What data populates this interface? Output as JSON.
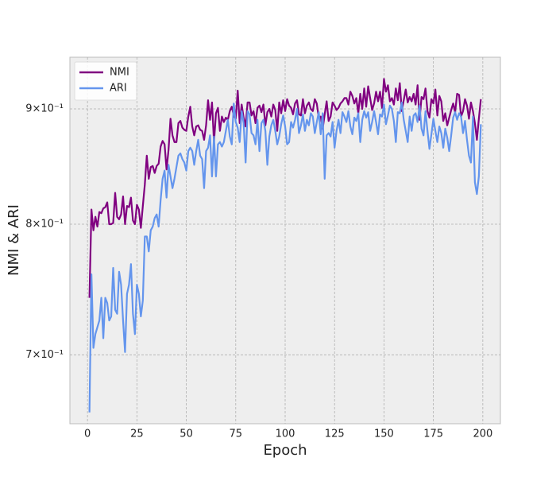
{
  "chart_data": {
    "type": "line",
    "xlabel": "Epoch",
    "ylabel": "NMI & ARI",
    "x": [
      1,
      2,
      3,
      4,
      5,
      6,
      7,
      8,
      9,
      10,
      11,
      12,
      13,
      14,
      15,
      16,
      17,
      18,
      19,
      20,
      21,
      22,
      23,
      24,
      25,
      26,
      27,
      28,
      29,
      30,
      31,
      32,
      33,
      34,
      35,
      36,
      37,
      38,
      39,
      40,
      41,
      42,
      43,
      44,
      45,
      46,
      47,
      48,
      49,
      50,
      51,
      52,
      53,
      54,
      55,
      56,
      57,
      58,
      59,
      60,
      61,
      62,
      63,
      64,
      65,
      66,
      67,
      68,
      69,
      70,
      71,
      72,
      73,
      74,
      75,
      76,
      77,
      78,
      79,
      80,
      81,
      82,
      83,
      84,
      85,
      86,
      87,
      88,
      89,
      90,
      91,
      92,
      93,
      94,
      95,
      96,
      97,
      98,
      99,
      100,
      101,
      102,
      103,
      104,
      105,
      106,
      107,
      108,
      109,
      110,
      111,
      112,
      113,
      114,
      115,
      116,
      117,
      118,
      119,
      120,
      121,
      122,
      123,
      124,
      125,
      126,
      127,
      128,
      129,
      130,
      131,
      132,
      133,
      134,
      135,
      136,
      137,
      138,
      139,
      140,
      141,
      142,
      143,
      144,
      145,
      146,
      147,
      148,
      149,
      150,
      151,
      152,
      153,
      154,
      155,
      156,
      157,
      158,
      159,
      160,
      161,
      162,
      163,
      164,
      165,
      166,
      167,
      168,
      169,
      170,
      171,
      172,
      173,
      174,
      175,
      176,
      177,
      178,
      179,
      180,
      181,
      182,
      183,
      184,
      185,
      186,
      187,
      188,
      189,
      190,
      191,
      192,
      193,
      194,
      195,
      196,
      197,
      198,
      199
    ],
    "series": [
      {
        "name": "NMI",
        "color": "#800080",
        "values": [
          0.742,
          0.812,
          0.795,
          0.806,
          0.798,
          0.81,
          0.809,
          0.813,
          0.814,
          0.818,
          0.8,
          0.8,
          0.801,
          0.826,
          0.806,
          0.804,
          0.808,
          0.823,
          0.8,
          0.815,
          0.814,
          0.822,
          0.803,
          0.8,
          0.816,
          0.812,
          0.797,
          0.815,
          0.833,
          0.858,
          0.838,
          0.848,
          0.849,
          0.843,
          0.849,
          0.851,
          0.866,
          0.871,
          0.868,
          0.846,
          0.863,
          0.891,
          0.876,
          0.87,
          0.87,
          0.887,
          0.889,
          0.883,
          0.881,
          0.88,
          0.893,
          0.902,
          0.884,
          0.876,
          0.884,
          0.885,
          0.881,
          0.88,
          0.872,
          0.885,
          0.908,
          0.89,
          0.906,
          0.87,
          0.896,
          0.901,
          0.88,
          0.893,
          0.888,
          0.892,
          0.89,
          0.898,
          0.902,
          0.894,
          0.891,
          0.917,
          0.887,
          0.904,
          0.892,
          0.884,
          0.906,
          0.906,
          0.894,
          0.898,
          0.887,
          0.901,
          0.903,
          0.897,
          0.904,
          0.885,
          0.897,
          0.9,
          0.893,
          0.904,
          0.899,
          0.88,
          0.906,
          0.896,
          0.908,
          0.898,
          0.909,
          0.903,
          0.901,
          0.895,
          0.905,
          0.908,
          0.895,
          0.894,
          0.909,
          0.896,
          0.903,
          0.906,
          0.9,
          0.898,
          0.909,
          0.905,
          0.892,
          0.893,
          0.882,
          0.895,
          0.907,
          0.889,
          0.893,
          0.906,
          0.903,
          0.899,
          0.901,
          0.905,
          0.907,
          0.91,
          0.91,
          0.904,
          0.916,
          0.912,
          0.905,
          0.91,
          0.896,
          0.914,
          0.9,
          0.919,
          0.902,
          0.921,
          0.91,
          0.899,
          0.905,
          0.916,
          0.907,
          0.916,
          0.901,
          0.928,
          0.916,
          0.922,
          0.907,
          0.91,
          0.904,
          0.919,
          0.908,
          0.924,
          0.898,
          0.908,
          0.918,
          0.906,
          0.911,
          0.907,
          0.914,
          0.904,
          0.922,
          0.89,
          0.911,
          0.909,
          0.919,
          0.898,
          0.892,
          0.909,
          0.905,
          0.918,
          0.894,
          0.912,
          0.907,
          0.889,
          0.896,
          0.885,
          0.892,
          0.899,
          0.905,
          0.897,
          0.914,
          0.913,
          0.893,
          0.898,
          0.909,
          0.903,
          0.891,
          0.906,
          0.898,
          0.887,
          0.872,
          0.891,
          0.909
        ]
      },
      {
        "name": "ARI",
        "color": "#6495ed",
        "values": [
          0.66,
          0.76,
          0.705,
          0.715,
          0.72,
          0.725,
          0.742,
          0.712,
          0.742,
          0.738,
          0.725,
          0.728,
          0.765,
          0.733,
          0.73,
          0.762,
          0.752,
          0.725,
          0.702,
          0.745,
          0.752,
          0.768,
          0.73,
          0.715,
          0.752,
          0.745,
          0.728,
          0.74,
          0.79,
          0.79,
          0.778,
          0.795,
          0.798,
          0.805,
          0.808,
          0.798,
          0.82,
          0.838,
          0.845,
          0.822,
          0.85,
          0.84,
          0.83,
          0.838,
          0.848,
          0.858,
          0.86,
          0.855,
          0.852,
          0.845,
          0.862,
          0.865,
          0.862,
          0.85,
          0.862,
          0.872,
          0.858,
          0.855,
          0.83,
          0.862,
          0.865,
          0.876,
          0.84,
          0.875,
          0.84,
          0.868,
          0.87,
          0.866,
          0.87,
          0.88,
          0.89,
          0.875,
          0.868,
          0.905,
          0.888,
          0.883,
          0.87,
          0.898,
          0.887,
          0.852,
          0.898,
          0.895,
          0.878,
          0.876,
          0.868,
          0.89,
          0.862,
          0.887,
          0.89,
          0.88,
          0.85,
          0.875,
          0.885,
          0.89,
          0.88,
          0.868,
          0.875,
          0.886,
          0.894,
          0.884,
          0.868,
          0.87,
          0.888,
          0.883,
          0.89,
          0.9,
          0.878,
          0.885,
          0.895,
          0.88,
          0.89,
          0.885,
          0.896,
          0.893,
          0.878,
          0.888,
          0.897,
          0.877,
          0.896,
          0.838,
          0.876,
          0.878,
          0.875,
          0.888,
          0.865,
          0.88,
          0.89,
          0.878,
          0.897,
          0.893,
          0.888,
          0.898,
          0.884,
          0.877,
          0.892,
          0.889,
          0.896,
          0.87,
          0.89,
          0.898,
          0.892,
          0.897,
          0.88,
          0.888,
          0.898,
          0.888,
          0.877,
          0.895,
          0.893,
          0.904,
          0.886,
          0.894,
          0.903,
          0.9,
          0.889,
          0.87,
          0.897,
          0.896,
          0.906,
          0.89,
          0.88,
          0.87,
          0.893,
          0.88,
          0.894,
          0.896,
          0.888,
          0.903,
          0.882,
          0.876,
          0.898,
          0.88,
          0.864,
          0.877,
          0.891,
          0.88,
          0.87,
          0.884,
          0.878,
          0.865,
          0.882,
          0.874,
          0.862,
          0.876,
          0.892,
          0.897,
          0.89,
          0.896,
          0.893,
          0.878,
          0.889,
          0.872,
          0.858,
          0.852,
          0.893,
          0.835,
          0.825,
          0.84,
          0.886
        ]
      }
    ],
    "xlim": [
      -8.9,
      208.9
    ],
    "xticks": [
      0,
      25,
      50,
      75,
      100,
      125,
      150,
      175,
      200
    ],
    "ylim": [
      0.6524,
      0.9488
    ],
    "ylog": true,
    "yticks": [
      {
        "value": 0.7,
        "label": "7×10⁻¹"
      },
      {
        "value": 0.8,
        "label": "8×10⁻¹"
      },
      {
        "value": 0.9,
        "label": "9×10⁻¹"
      }
    ],
    "grid": true,
    "legend": "upper left"
  }
}
